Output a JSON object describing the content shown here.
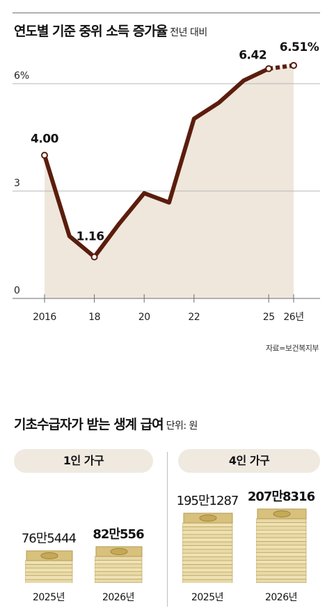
{
  "chart_data": [
    {
      "type": "line",
      "title": "연도별 기준 중위 소득 증가율",
      "subtitle": "전년 대비",
      "x": [
        2016,
        2017,
        2018,
        2019,
        2020,
        2021,
        2022,
        2023,
        2024,
        2025,
        2026
      ],
      "x_tick_labels": [
        {
          "x": 2016,
          "label": "2016"
        },
        {
          "x": 2018,
          "label": "18"
        },
        {
          "x": 2020,
          "label": "20"
        },
        {
          "x": 2022,
          "label": "22"
        },
        {
          "x": 2025,
          "label": "25"
        },
        {
          "x": 2026,
          "label": "26년"
        }
      ],
      "series": [
        {
          "values": [
            4.0,
            1.74,
            1.16,
            2.09,
            2.94,
            2.68,
            5.02,
            5.47,
            6.09,
            6.42,
            6.51
          ]
        }
      ],
      "projected_from_x": 2025,
      "data_labels": [
        {
          "x": 2016,
          "label": "4.00"
        },
        {
          "x": 2018,
          "label": "1.16"
        },
        {
          "x": 2025,
          "label": "6.42"
        },
        {
          "x": 2026,
          "label": "6.51%"
        }
      ],
      "y_ticks": [
        {
          "value": 0,
          "label": "0"
        },
        {
          "value": 3,
          "label": "3"
        },
        {
          "value": 6,
          "label": "6%"
        }
      ],
      "ylim": [
        0,
        6.8
      ],
      "grid": true,
      "colors": {
        "line": "#5b1d0d",
        "area": "#efe7dc",
        "grid": "#b5b5b5"
      },
      "source": "자료=보건복지부"
    },
    {
      "type": "bar",
      "title": "기초수급자가 받는 생계 급여",
      "subtitle": "단위: 원",
      "groups": [
        {
          "name": "1인 가구",
          "items": [
            {
              "year": "2025년",
              "label": "76만5444",
              "value": 765444,
              "emphasis": false
            },
            {
              "year": "2026년",
              "label": "82만556",
              "value": 820556,
              "emphasis": true
            }
          ]
        },
        {
          "name": "4인 가구",
          "items": [
            {
              "year": "2025년",
              "label": "195만1287",
              "value": 1951287,
              "emphasis": false
            },
            {
              "year": "2026년",
              "label": "207만8316",
              "value": 2078316,
              "emphasis": true
            }
          ]
        }
      ],
      "colors": {
        "pill": "#efe9e0",
        "money": "#e8d9a8",
        "money_edge": "#b59a52"
      }
    }
  ]
}
